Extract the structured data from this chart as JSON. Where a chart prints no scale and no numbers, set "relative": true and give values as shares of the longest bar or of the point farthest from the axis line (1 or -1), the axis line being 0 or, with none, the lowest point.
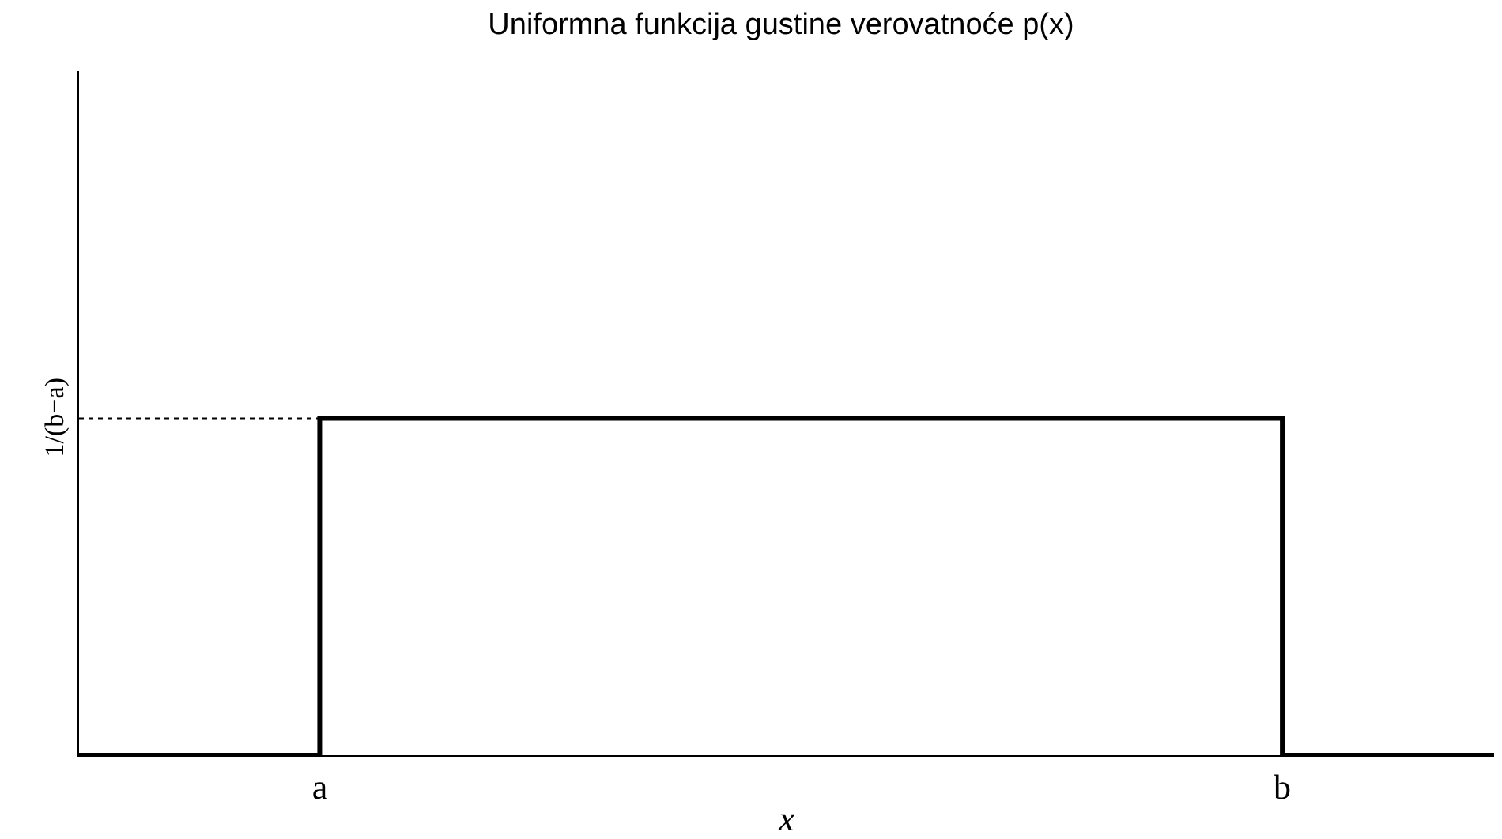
{
  "chart_data": {
    "type": "step",
    "title": "Uniformna funkcija gustine verovatnoće p(x)",
    "xlabel": "x",
    "relative": true,
    "categories": [
      null,
      "a",
      null,
      null,
      null,
      "b",
      null
    ],
    "series": [
      {
        "color": "#000000",
        "values": [
          0,
          1,
          1,
          1,
          1,
          0,
          0
        ]
      }
    ],
    "ref_lines": [
      {
        "axis": "y",
        "value": 1,
        "label": "1/(b−a)",
        "color": "#000000",
        "line_style": "dotted"
      }
    ],
    "grid": false
  }
}
